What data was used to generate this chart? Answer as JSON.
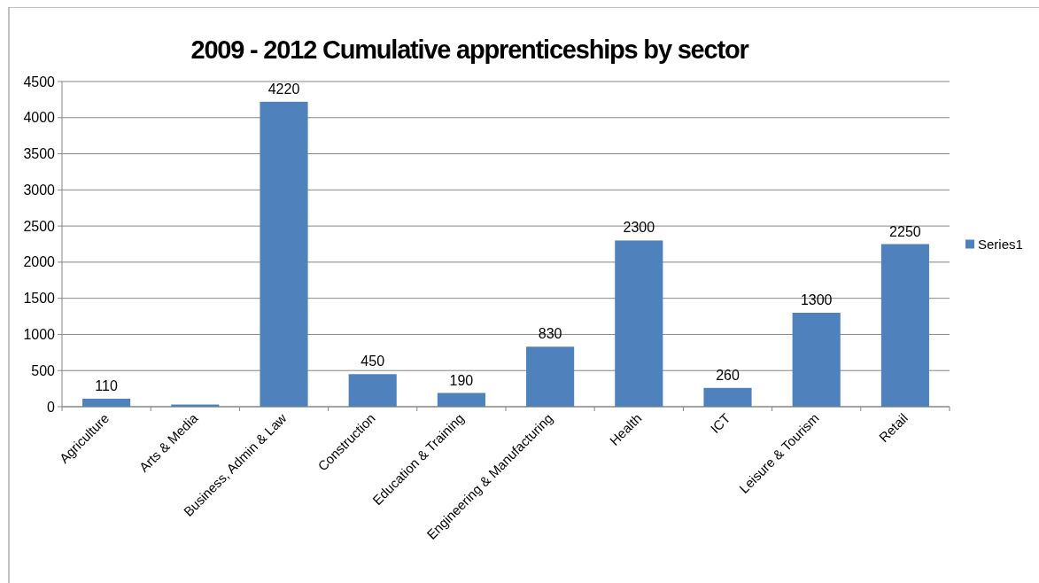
{
  "chart_data": {
    "type": "bar",
    "title": "2009 - 2012 Cumulative apprenticeships by sector",
    "categories": [
      "Agriculture",
      "Arts & Media",
      "Business, Admin & Law",
      "Construction",
      "Education & Training",
      "Engineering & Manufacturing",
      "Health",
      "ICT",
      "Leisure & Tourism",
      "Retail"
    ],
    "series": [
      {
        "name": "Series1",
        "color": "#4f81bd",
        "values": [
          110,
          30,
          4220,
          450,
          190,
          830,
          2300,
          260,
          1300,
          2250
        ],
        "value_labels": [
          "110",
          null,
          "4220",
          "450",
          "190",
          "830",
          "2300",
          "260",
          "1300",
          "2250"
        ]
      }
    ],
    "ylim": [
      0,
      4500
    ],
    "yticks": [
      0,
      500,
      1000,
      1500,
      2000,
      2500,
      3000,
      3500,
      4000,
      4500
    ],
    "grid": "y",
    "legend": "right"
  }
}
